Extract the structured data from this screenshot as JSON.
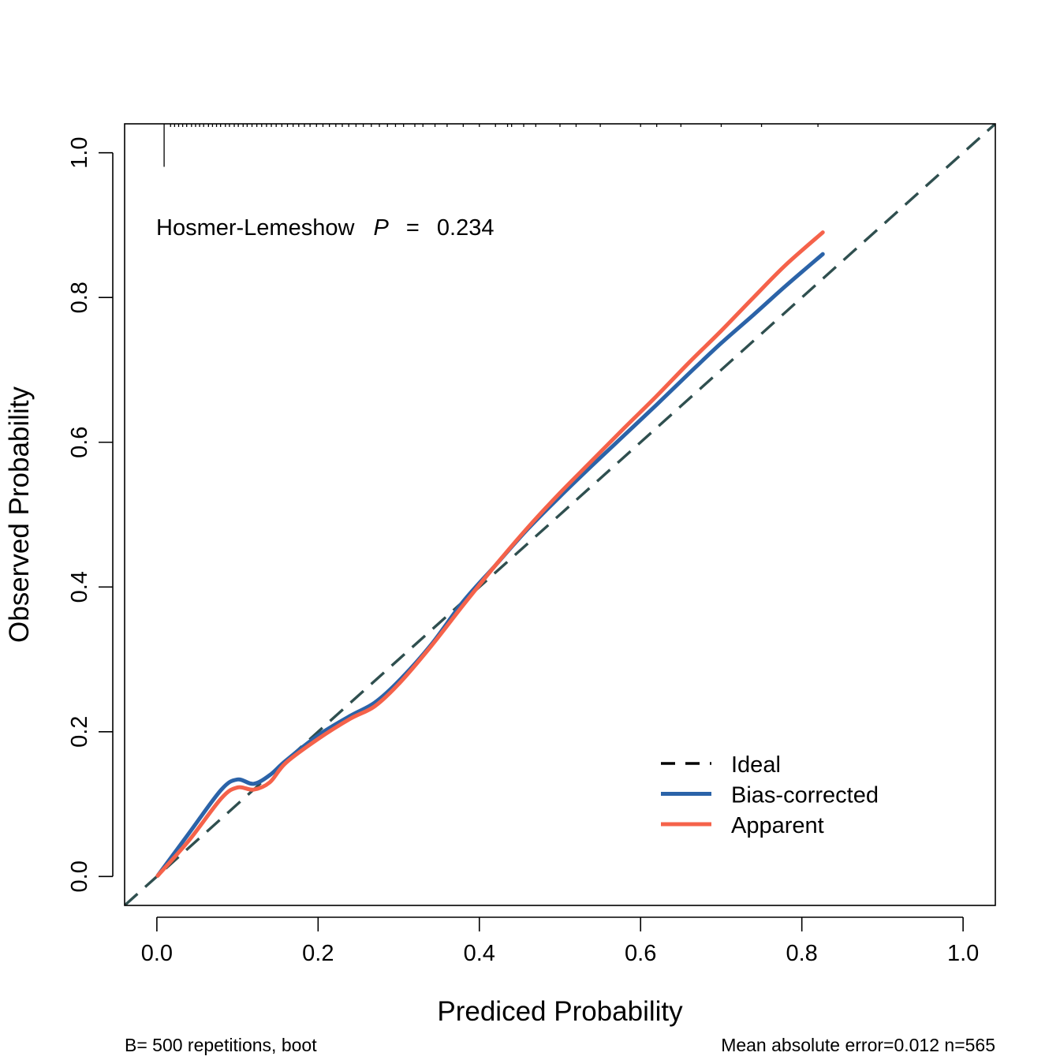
{
  "chart_data": {
    "type": "line",
    "xlabel": "Prediced Probability",
    "ylabel": "Observed Probability",
    "xlim": [
      -0.04,
      1.04
    ],
    "ylim": [
      -0.04,
      1.04
    ],
    "x_ticks": [
      "0.0",
      "0.2",
      "0.4",
      "0.6",
      "0.8",
      "1.0"
    ],
    "y_ticks": [
      "0.0",
      "0.2",
      "0.4",
      "0.6",
      "0.8",
      "1.0"
    ],
    "annotation": {
      "prefix": "Hosmer-Lemeshow",
      "p_symbol": "P",
      "equals": "=",
      "value": "0.234"
    },
    "legend": {
      "position": "bottom-right"
    },
    "series": [
      {
        "name": "Ideal",
        "color": "#2F4F4F",
        "style": "dashed",
        "x": [
          -0.04,
          1.04
        ],
        "y": [
          -0.04,
          1.04
        ]
      },
      {
        "name": "Bias-corrected",
        "color": "#2B63A8",
        "style": "solid",
        "x": [
          0.001,
          0.04,
          0.08,
          0.1,
          0.12,
          0.14,
          0.16,
          0.2,
          0.24,
          0.27,
          0.3,
          0.34,
          0.38,
          0.42,
          0.46,
          0.5,
          0.54,
          0.58,
          0.62,
          0.66,
          0.7,
          0.74,
          0.78,
          0.826
        ],
        "y": [
          0.001,
          0.06,
          0.12,
          0.134,
          0.128,
          0.14,
          0.16,
          0.195,
          0.222,
          0.24,
          0.27,
          0.32,
          0.38,
          0.43,
          0.48,
          0.525,
          0.568,
          0.61,
          0.652,
          0.695,
          0.737,
          0.776,
          0.816,
          0.86
        ]
      },
      {
        "name": "Apparent",
        "color": "#F5624A",
        "style": "solid",
        "x": [
          0.001,
          0.04,
          0.08,
          0.1,
          0.12,
          0.14,
          0.16,
          0.2,
          0.24,
          0.27,
          0.3,
          0.34,
          0.38,
          0.42,
          0.46,
          0.5,
          0.54,
          0.58,
          0.62,
          0.66,
          0.7,
          0.74,
          0.78,
          0.826
        ],
        "y": [
          0.001,
          0.05,
          0.108,
          0.123,
          0.12,
          0.13,
          0.157,
          0.19,
          0.218,
          0.235,
          0.266,
          0.318,
          0.375,
          0.43,
          0.482,
          0.53,
          0.575,
          0.62,
          0.664,
          0.71,
          0.754,
          0.8,
          0.845,
          0.89
        ]
      }
    ],
    "rug": [
      0.009,
      0.017,
      0.022,
      0.027,
      0.032,
      0.037,
      0.043,
      0.048,
      0.053,
      0.058,
      0.064,
      0.069,
      0.074,
      0.079,
      0.085,
      0.09,
      0.096,
      0.101,
      0.107,
      0.112,
      0.118,
      0.124,
      0.13,
      0.136,
      0.142,
      0.148,
      0.155,
      0.162,
      0.169,
      0.176,
      0.183,
      0.19,
      0.198,
      0.206,
      0.214,
      0.222,
      0.23,
      0.238,
      0.247,
      0.256,
      0.266,
      0.276,
      0.286,
      0.296,
      0.306,
      0.32,
      0.33,
      0.345,
      0.36,
      0.38,
      0.4,
      0.42,
      0.435,
      0.44,
      0.455,
      0.47,
      0.5,
      0.52,
      0.55,
      0.6,
      0.62,
      0.65,
      0.7,
      0.75,
      0.82
    ],
    "rug_heights": {
      "0.009": 0.055
    },
    "footer_left": "B= 500 repetitions, boot",
    "footer_right": "Mean absolute error=0.012 n=565"
  }
}
